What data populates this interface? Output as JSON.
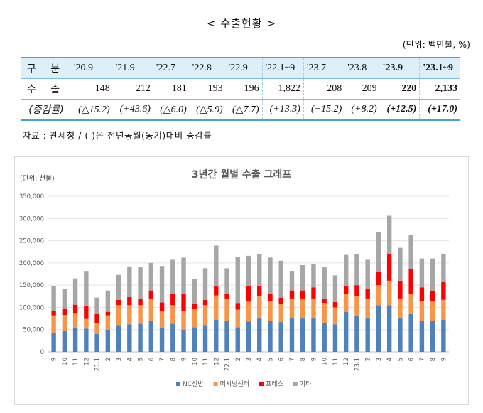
{
  "header": {
    "title": "< 수출현황 >",
    "unit": "(단위: 백만불, %)"
  },
  "table": {
    "row_labels": [
      "구 분",
      "수 출",
      "(증감률)"
    ],
    "columns": [
      {
        "period": "'20.9",
        "export": "148",
        "change": "(△15.2)"
      },
      {
        "period": "'21.9",
        "export": "212",
        "change": "(+43.6)"
      },
      {
        "period": "'22.7",
        "export": "181",
        "change": "(△6.0)"
      },
      {
        "period": "'22.8",
        "export": "193",
        "change": "(△5.9)"
      },
      {
        "period": "'22.9",
        "export": "196",
        "change": "(△7.7)"
      },
      {
        "period": "'22.1~9",
        "export": "1,822",
        "change": "(+13.3)"
      },
      {
        "period": "'23.7",
        "export": "208",
        "change": "(+15.2)"
      },
      {
        "period": "'23.8",
        "export": "209",
        "change": "(+8.2)"
      },
      {
        "period": "'23.9",
        "export": "220",
        "change": "(+12.5)"
      },
      {
        "period": "'23.1~9",
        "export": "2,133",
        "change": "(+17.0)"
      }
    ]
  },
  "source": "자료 : 관세청 / (    )은 전년동월(동기)대비 증감률",
  "chart_data": {
    "type": "bar",
    "stacked": true,
    "title": "3년간 월별 수출 그래프",
    "unit_label": "(단위: 천불)",
    "ylim": [
      0,
      350000
    ],
    "yticks": [
      "0",
      "50,000",
      "100,000",
      "150,000",
      "200,000",
      "250,000",
      "300,000",
      "350,000"
    ],
    "grid": true,
    "legend_position": "bottom",
    "categories": [
      "9",
      "10",
      "11",
      "12",
      "21.1",
      "2",
      "3",
      "4",
      "5",
      "6",
      "7",
      "8",
      "9",
      "10",
      "11",
      "12",
      "22.1",
      "2",
      "3",
      "4",
      "5",
      "6",
      "7",
      "8",
      "9",
      "10",
      "11",
      "12",
      "23.1",
      "2",
      "3",
      "4",
      "5",
      "6",
      "7",
      "8",
      "9"
    ],
    "series": [
      {
        "name": "NC선반",
        "color": "#4f81bd",
        "values": [
          42000,
          48000,
          53000,
          52000,
          40000,
          50000,
          60000,
          62000,
          63000,
          70000,
          53000,
          63000,
          50000,
          55000,
          60000,
          72000,
          70000,
          55000,
          68000,
          75000,
          70000,
          67000,
          75000,
          75000,
          75000,
          65000,
          62000,
          90000,
          80000,
          75000,
          105000,
          105000,
          75000,
          85000,
          70000,
          70000,
          72000
        ]
      },
      {
        "name": "머시닝센터",
        "color": "#f79646",
        "values": [
          40000,
          35000,
          33000,
          22000,
          25000,
          32000,
          45000,
          43000,
          42000,
          50000,
          38000,
          42000,
          42000,
          42000,
          45000,
          55000,
          50000,
          40000,
          45000,
          50000,
          45000,
          40000,
          45000,
          45000,
          45000,
          45000,
          38000,
          40000,
          45000,
          45000,
          45000,
          55000,
          45000,
          45000,
          45000,
          45000,
          45000
        ]
      },
      {
        "name": "프레스",
        "color": "#ff0000",
        "values": [
          10000,
          15000,
          20000,
          30000,
          20000,
          8000,
          12000,
          18000,
          15000,
          18000,
          20000,
          25000,
          38000,
          12000,
          12000,
          20000,
          10000,
          15000,
          35000,
          22000,
          15000,
          15000,
          18000,
          18000,
          25000,
          10000,
          12000,
          18000,
          25000,
          22000,
          30000,
          60000,
          40000,
          57000,
          30000,
          22000,
          40000
        ]
      },
      {
        "name": "기타",
        "color": "#a6a6a6",
        "values": [
          55000,
          43000,
          59000,
          78000,
          37000,
          48000,
          56000,
          69000,
          70000,
          62000,
          82000,
          77000,
          82000,
          55000,
          71000,
          92000,
          58000,
          103000,
          68000,
          72000,
          82000,
          83000,
          44000,
          57000,
          53000,
          70000,
          60000,
          70000,
          70000,
          65000,
          90000,
          86000,
          74000,
          76000,
          65000,
          73000,
          62000
        ]
      }
    ]
  }
}
